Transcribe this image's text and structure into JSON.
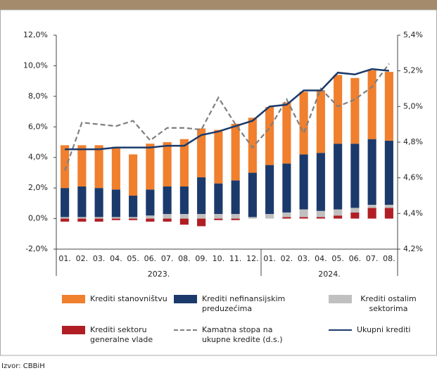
{
  "chart_data": {
    "type": "bar",
    "categories": [
      "01.",
      "02.",
      "03.",
      "04.",
      "05.",
      "06.",
      "07.",
      "08.",
      "09.",
      "10.",
      "11.",
      "12.",
      "01.",
      "02.",
      "03.",
      "04.",
      "05.",
      "06.",
      "07.",
      "08."
    ],
    "groups": [
      {
        "label": "2023.",
        "count": 12
      },
      {
        "label": "2024.",
        "count": 8
      }
    ],
    "series": [
      {
        "name": "Krediti sektoru generalne vlade",
        "color": "#b01e24",
        "kind": "bar",
        "values": [
          -0.2,
          -0.2,
          -0.2,
          -0.1,
          -0.1,
          -0.2,
          -0.2,
          -0.4,
          -0.5,
          -0.1,
          -0.1,
          0.0,
          0.0,
          0.1,
          0.1,
          0.1,
          0.2,
          0.4,
          0.7,
          0.7
        ]
      },
      {
        "name": "Krediti ostalim sektorima",
        "color": "#c0c0c0",
        "kind": "bar",
        "values": [
          0.1,
          0.1,
          0.1,
          0.1,
          0.1,
          0.2,
          0.3,
          0.3,
          0.3,
          0.3,
          0.3,
          0.1,
          0.3,
          0.3,
          0.5,
          0.4,
          0.4,
          0.3,
          0.2,
          0.2
        ]
      },
      {
        "name": "Krediti nefinansijskim preduzećima",
        "color": "#1b3a6b",
        "kind": "bar",
        "values": [
          1.9,
          2.0,
          1.9,
          1.8,
          1.4,
          1.7,
          1.8,
          1.8,
          2.4,
          2.0,
          2.2,
          2.9,
          3.2,
          3.2,
          3.6,
          3.8,
          4.3,
          4.2,
          4.3,
          4.2
        ]
      },
      {
        "name": "Krediti stanovništvu",
        "color": "#f07f2e",
        "kind": "bar",
        "values": [
          2.8,
          2.7,
          2.8,
          2.8,
          2.7,
          3.0,
          2.9,
          3.1,
          3.2,
          3.5,
          3.7,
          3.6,
          3.8,
          4.0,
          4.1,
          4.1,
          4.5,
          4.3,
          4.5,
          4.5
        ]
      },
      {
        "name": "Kamatna stopa na ukupne kredite (d.s.)",
        "color": "#7f7f7f",
        "kind": "line",
        "line_style": "dashed",
        "axis": "y2",
        "values": [
          4.64,
          4.91,
          4.9,
          4.89,
          4.92,
          4.81,
          4.88,
          4.88,
          4.87,
          5.05,
          4.9,
          4.77,
          4.88,
          5.04,
          4.85,
          5.1,
          5.0,
          5.04,
          5.11,
          5.24
        ]
      },
      {
        "name": "Ukupni krediti",
        "color": "#1b3a6b",
        "kind": "line",
        "line_style": "solid",
        "axis": "y2",
        "values": [
          4.76,
          4.76,
          4.76,
          4.77,
          4.77,
          4.77,
          4.78,
          4.78,
          4.84,
          4.86,
          4.89,
          4.92,
          5.0,
          5.01,
          5.09,
          5.09,
          5.19,
          5.18,
          5.21,
          5.2
        ]
      }
    ],
    "ylim": [
      -2,
      12
    ],
    "yticks": [
      {
        "value": -2,
        "label": "-2,0%"
      },
      {
        "value": 0,
        "label": "0,0%"
      },
      {
        "value": 2,
        "label": "2,0%"
      },
      {
        "value": 4,
        "label": "4,0%"
      },
      {
        "value": 6,
        "label": "6,0%"
      },
      {
        "value": 8,
        "label": "8,0%"
      },
      {
        "value": 10,
        "label": "10,0%"
      },
      {
        "value": 12,
        "label": "12,0%"
      }
    ],
    "y2lim": [
      4.2,
      5.4
    ],
    "y2ticks": [
      {
        "value": 4.2,
        "label": "4,2%"
      },
      {
        "value": 4.4,
        "label": "4,4%"
      },
      {
        "value": 4.6,
        "label": "4,6%"
      },
      {
        "value": 4.8,
        "label": "4,8%"
      },
      {
        "value": 5.0,
        "label": "5,0%"
      },
      {
        "value": 5.2,
        "label": "5,2%"
      },
      {
        "value": 5.4,
        "label": "5,4%"
      }
    ],
    "grid": false,
    "legend_order": [
      3,
      2,
      1,
      0,
      4,
      5
    ],
    "source": "Izvor: CBBiH"
  }
}
